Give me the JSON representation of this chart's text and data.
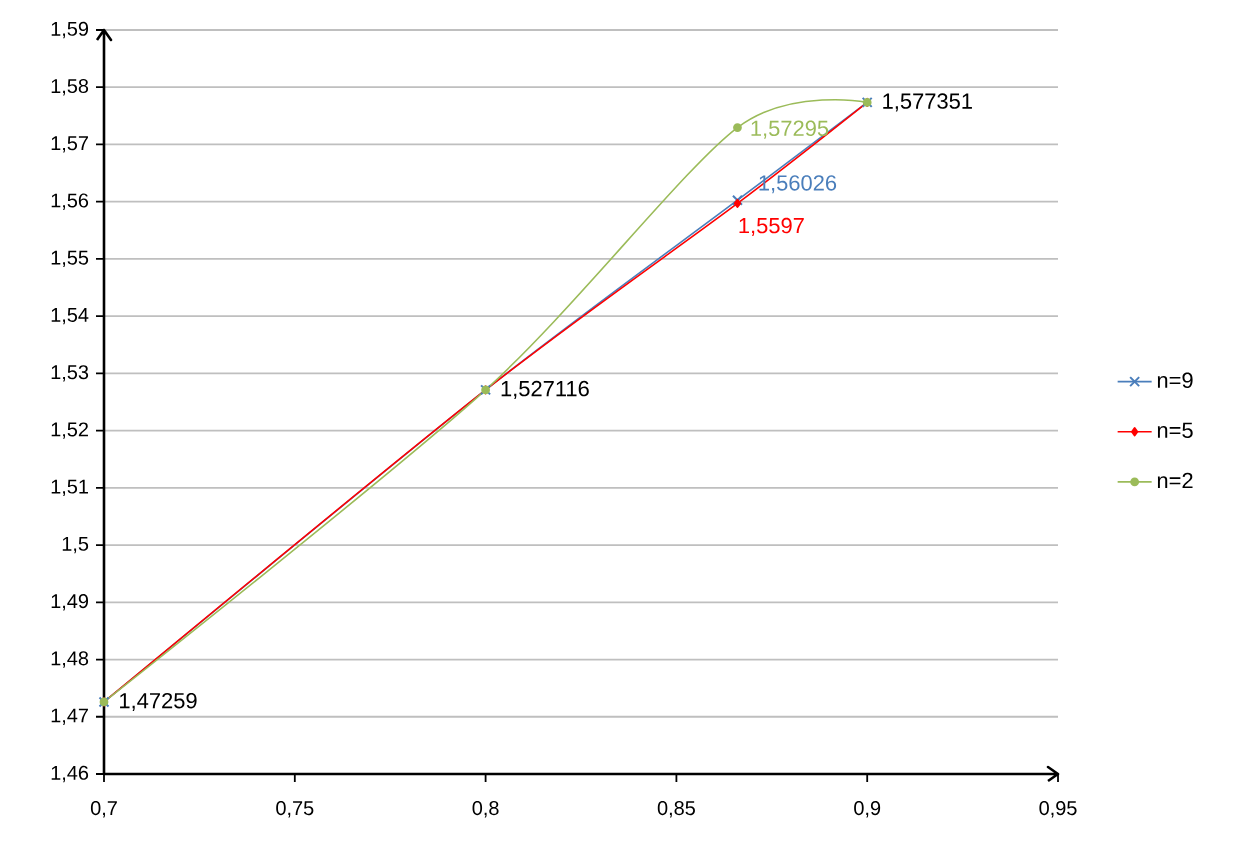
{
  "chart_data": {
    "type": "line",
    "x": [
      0.7,
      0.8,
      0.866,
      0.9
    ],
    "series": [
      {
        "name": "n=9",
        "color": "#4a7ebb",
        "marker": "cross",
        "values": [
          1.47259,
          1.527116,
          1.56026,
          1.577351
        ],
        "value_labels": [
          null,
          null,
          "1,56026",
          null
        ]
      },
      {
        "name": "n=5",
        "color": "#ff0000",
        "marker": "diamond",
        "values": [
          1.47259,
          1.527116,
          1.5597,
          1.577351
        ],
        "value_labels": [
          null,
          null,
          "1,5597",
          null
        ]
      },
      {
        "name": "n=2",
        "color": "#9bbb59",
        "marker": "circle",
        "values": [
          1.47259,
          1.527116,
          1.57295,
          1.577351
        ],
        "value_labels": [
          null,
          null,
          "1,57295",
          null
        ]
      }
    ],
    "annotations": [
      {
        "text": "1,47259",
        "x": 0.7,
        "y": 1.47259
      },
      {
        "text": "1,527116",
        "x": 0.8,
        "y": 1.527116
      },
      {
        "text": "1,577351",
        "x": 0.9,
        "y": 1.577351
      }
    ],
    "xlim": [
      0.7,
      0.95
    ],
    "xticks": [
      {
        "value": 0.7,
        "label": "0,7"
      },
      {
        "value": 0.75,
        "label": "0,75"
      },
      {
        "value": 0.8,
        "label": "0,8"
      },
      {
        "value": 0.85,
        "label": "0,85"
      },
      {
        "value": 0.9,
        "label": "0,9"
      },
      {
        "value": 0.95,
        "label": "0,95"
      }
    ],
    "ylim": [
      1.46,
      1.59
    ],
    "yticks": [
      {
        "value": 1.46,
        "label": "1,46"
      },
      {
        "value": 1.47,
        "label": "1,47"
      },
      {
        "value": 1.48,
        "label": "1,48"
      },
      {
        "value": 1.49,
        "label": "1,49"
      },
      {
        "value": 1.5,
        "label": "1,5"
      },
      {
        "value": 1.51,
        "label": "1,51"
      },
      {
        "value": 1.52,
        "label": "1,52"
      },
      {
        "value": 1.53,
        "label": "1,53"
      },
      {
        "value": 1.54,
        "label": "1,54"
      },
      {
        "value": 1.55,
        "label": "1,55"
      },
      {
        "value": 1.56,
        "label": "1,56"
      },
      {
        "value": 1.57,
        "label": "1,57"
      },
      {
        "value": 1.58,
        "label": "1,58"
      },
      {
        "value": 1.59,
        "label": "1,59"
      }
    ],
    "grid": "y",
    "legend": "right",
    "line_style": "solid"
  }
}
